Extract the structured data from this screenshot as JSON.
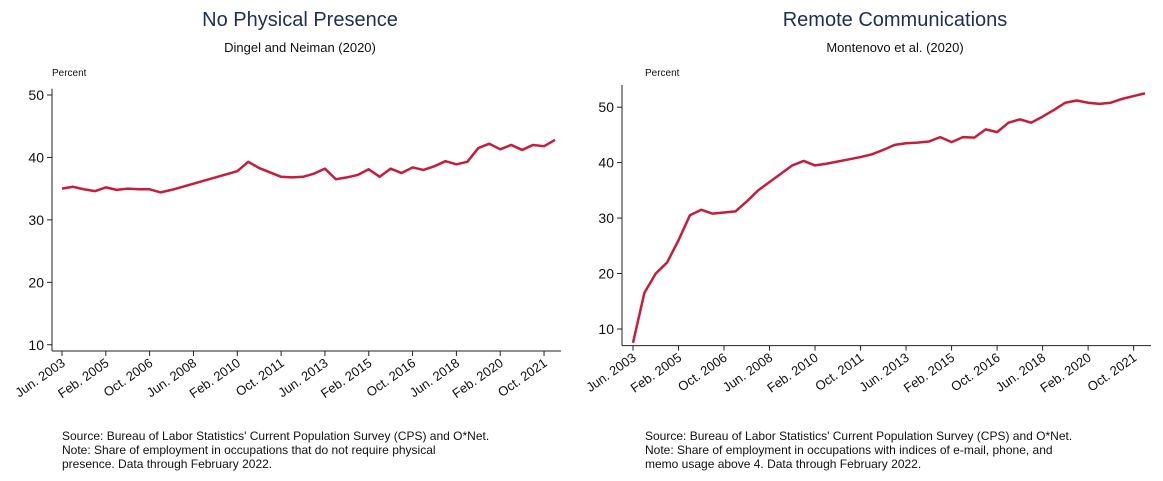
{
  "chart_data": [
    {
      "type": "line",
      "title": "No Physical Presence",
      "subtitle": "Dingel and Neiman (2020)",
      "y_label": "Percent",
      "categories": [
        "Jun. 2003",
        null,
        null,
        null,
        "Feb. 2005",
        null,
        null,
        null,
        "Oct. 2006",
        null,
        null,
        null,
        "Jun. 2008",
        null,
        null,
        null,
        "Feb. 2010",
        null,
        null,
        null,
        "Oct. 2011",
        null,
        null,
        null,
        "Jun. 2013",
        null,
        null,
        null,
        "Feb. 2015",
        null,
        null,
        null,
        "Oct. 2016",
        null,
        null,
        null,
        "Jun. 2018",
        null,
        null,
        null,
        "Feb. 2020",
        null,
        null,
        null,
        "Oct. 2021",
        null
      ],
      "values": [
        35.0,
        35.3,
        34.9,
        34.6,
        35.2,
        34.8,
        35.0,
        34.9,
        34.9,
        34.4,
        34.8,
        35.3,
        35.8,
        36.3,
        36.8,
        37.3,
        37.8,
        39.3,
        38.3,
        37.6,
        36.9,
        36.8,
        36.9,
        37.4,
        38.2,
        36.5,
        36.8,
        37.2,
        38.1,
        36.9,
        38.2,
        37.5,
        38.4,
        38.0,
        38.6,
        39.4,
        38.9,
        39.3,
        41.5,
        42.2,
        41.3,
        42.0,
        41.2,
        42.0,
        41.8,
        42.8
      ],
      "color": "#c41e3a",
      "ylim": [
        9,
        51
      ],
      "yticks": [
        10,
        20,
        30,
        40,
        50
      ],
      "notes": [
        "Source: Bureau of Labor Statistics' Current Population Survey (CPS) and O*Net.",
        "Note: Share of employment in occupations that do not require physical",
        "presence. Data through February 2022."
      ]
    },
    {
      "type": "line",
      "title": "Remote Communications",
      "subtitle": "Montenovo et al. (2020)",
      "y_label": "Percent",
      "categories": [
        "Jun. 2003",
        null,
        null,
        null,
        "Feb. 2005",
        null,
        null,
        null,
        "Oct. 2006",
        null,
        null,
        null,
        "Jun. 2008",
        null,
        null,
        null,
        "Feb. 2010",
        null,
        null,
        null,
        "Oct. 2011",
        null,
        null,
        null,
        "Jun. 2013",
        null,
        null,
        null,
        "Feb. 2015",
        null,
        null,
        null,
        "Oct. 2016",
        null,
        null,
        null,
        "Jun. 2018",
        null,
        null,
        null,
        "Feb. 2020",
        null,
        null,
        null,
        "Oct. 2021",
        null
      ],
      "values": [
        7.5,
        16.5,
        20.0,
        22.0,
        26.0,
        30.5,
        31.5,
        30.8,
        31.0,
        31.2,
        33.0,
        35.0,
        36.5,
        38.0,
        39.5,
        40.3,
        39.5,
        39.8,
        40.2,
        40.6,
        41.0,
        41.5,
        42.3,
        43.2,
        43.5,
        43.6,
        43.8,
        44.6,
        43.7,
        44.6,
        44.5,
        46.0,
        45.5,
        47.2,
        47.8,
        47.2,
        48.3,
        49.5,
        50.8,
        51.2,
        50.8,
        50.6,
        50.8,
        51.5,
        52.0,
        52.5
      ],
      "color": "#c41e3a",
      "ylim": [
        7,
        54
      ],
      "yticks": [
        10,
        20,
        30,
        40,
        50
      ],
      "notes": [
        "Source: Bureau of Labor Statistics' Current Population Survey (CPS) and O*Net.",
        "Note: Share of employment in occupations with indices of e-mail, phone, and",
        "memo usage above 4. Data through February 2022."
      ]
    }
  ]
}
